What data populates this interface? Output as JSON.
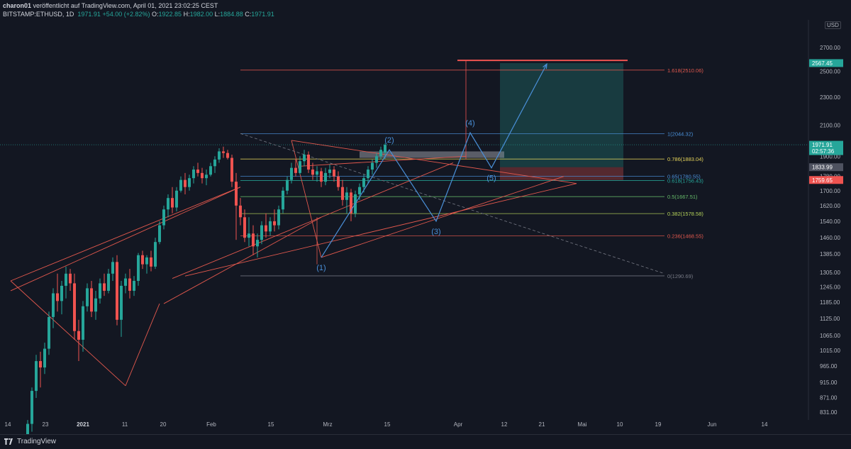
{
  "header": {
    "author": "charon01",
    "published": "veröffentlicht auf TradingView.com, April 01, 2021 23:02:25 CEST",
    "symbol": "BITSTAMP:ETHUSD, 1D",
    "last": "1971.91",
    "change": "+54.00 (+2.82%)",
    "o_label": "O:",
    "o_value": "1922.85",
    "h_label": "H:",
    "h_value": "1982.00",
    "l_label": "L:",
    "l_value": "1884.88",
    "c_label": "C:",
    "c_value": "1971.91"
  },
  "currency_badge": "USD",
  "footer": {
    "brand": "TradingView"
  },
  "colors": {
    "background": "#131722",
    "up": "#26a69a",
    "down": "#ef5350",
    "wave": "#4a90d9",
    "trend": "#e2584d"
  },
  "chart_data": {
    "type": "candlestick",
    "title": "",
    "x_ticks": [
      "14",
      "23",
      "2021",
      "11",
      "20",
      "Feb",
      "15",
      "Mrz",
      "15",
      "Apr",
      "12",
      "21",
      "Mai",
      "10",
      "19",
      "Jun",
      "14"
    ],
    "y_ticks": [
      "2700.00",
      "2500.00",
      "2300.00",
      "2100.00",
      "1900.00",
      "1780.00",
      "1700.00",
      "1620.00",
      "1540.00",
      "1460.00",
      "1385.00",
      "1305.00",
      "1245.00",
      "1185.00",
      "1125.00",
      "1065.00",
      "1015.00",
      "965.00",
      "915.00",
      "871.00",
      "831.00"
    ],
    "price_labels": [
      {
        "text": "2567.45",
        "color": "#26a69a"
      },
      {
        "text": "1971.91",
        "sub": "02:57:36",
        "color": "#26a69a"
      },
      {
        "text": "1833.99",
        "color": "#4e5260"
      },
      {
        "text": "1759.65",
        "color": "#ef5350"
      }
    ],
    "fib_levels": [
      {
        "label": "1.618(2510.06)",
        "value": 2510.06,
        "color": "#e2584d"
      },
      {
        "label": "1(2044.32)",
        "value": 2044.32,
        "color": "#4a90d9"
      },
      {
        "label": "0.786(1883.04)",
        "value": 1883.04,
        "color": "#e5d45a"
      },
      {
        "label": "0.65(1780.55)",
        "value": 1780.55,
        "color": "#4a90d9"
      },
      {
        "label": "0.618(1756.43)",
        "value": 1756.43,
        "color": "#26a69a"
      },
      {
        "label": "0.5(1667.51)",
        "value": 1667.51,
        "color": "#66bb6a"
      },
      {
        "label": "0.382(1578.58)",
        "value": 1578.58,
        "color": "#b5d35a"
      },
      {
        "label": "0.236(1468.55)",
        "value": 1468.55,
        "color": "#e2584d"
      },
      {
        "label": "0(1290.69)",
        "value": 1290.69,
        "color": "#787b86"
      }
    ],
    "wave_labels": [
      "(1)",
      "(2)",
      "(3)",
      "(4)",
      "(5)"
    ],
    "wave_points": [
      {
        "date": "2021-02-26",
        "price": 1370
      },
      {
        "date": "2021-03-14",
        "price": 1940
      },
      {
        "date": "2021-03-25",
        "price": 1540
      },
      {
        "date": "2021-04-02",
        "price": 2050
      },
      {
        "date": "2021-04-07",
        "price": 1830
      },
      {
        "date": "2021-04-20",
        "price": 2560
      }
    ],
    "candles": [
      {
        "o": 752,
        "h": 810,
        "l": 740,
        "c": 800
      },
      {
        "o": 800,
        "h": 900,
        "l": 780,
        "c": 890
      },
      {
        "o": 890,
        "h": 1000,
        "l": 870,
        "c": 980
      },
      {
        "o": 980,
        "h": 1010,
        "l": 900,
        "c": 960
      },
      {
        "o": 960,
        "h": 1040,
        "l": 940,
        "c": 1020
      },
      {
        "o": 1020,
        "h": 1150,
        "l": 1000,
        "c": 1130
      },
      {
        "o": 1130,
        "h": 1240,
        "l": 1090,
        "c": 1220
      },
      {
        "o": 1220,
        "h": 1300,
        "l": 1150,
        "c": 1190
      },
      {
        "o": 1190,
        "h": 1270,
        "l": 1140,
        "c": 1250
      },
      {
        "o": 1250,
        "h": 1330,
        "l": 1200,
        "c": 1300
      },
      {
        "o": 1300,
        "h": 1320,
        "l": 1230,
        "c": 1260
      },
      {
        "o": 1260,
        "h": 1300,
        "l": 1050,
        "c": 1080
      },
      {
        "o": 1080,
        "h": 1120,
        "l": 980,
        "c": 1050
      },
      {
        "o": 1050,
        "h": 1190,
        "l": 1010,
        "c": 1170
      },
      {
        "o": 1170,
        "h": 1260,
        "l": 1150,
        "c": 1240
      },
      {
        "o": 1240,
        "h": 1270,
        "l": 1130,
        "c": 1150
      },
      {
        "o": 1150,
        "h": 1230,
        "l": 1120,
        "c": 1200
      },
      {
        "o": 1200,
        "h": 1280,
        "l": 1180,
        "c": 1260
      },
      {
        "o": 1260,
        "h": 1300,
        "l": 1210,
        "c": 1230
      },
      {
        "o": 1230,
        "h": 1320,
        "l": 1220,
        "c": 1300
      },
      {
        "o": 1300,
        "h": 1370,
        "l": 1270,
        "c": 1350
      },
      {
        "o": 1350,
        "h": 1380,
        "l": 1100,
        "c": 1120
      },
      {
        "o": 1120,
        "h": 1270,
        "l": 1060,
        "c": 1250
      },
      {
        "o": 1250,
        "h": 1300,
        "l": 1220,
        "c": 1280
      },
      {
        "o": 1280,
        "h": 1320,
        "l": 1200,
        "c": 1230
      },
      {
        "o": 1230,
        "h": 1290,
        "l": 1210,
        "c": 1270
      },
      {
        "o": 1270,
        "h": 1390,
        "l": 1250,
        "c": 1380
      },
      {
        "o": 1380,
        "h": 1400,
        "l": 1320,
        "c": 1340
      },
      {
        "o": 1340,
        "h": 1380,
        "l": 1300,
        "c": 1370
      },
      {
        "o": 1370,
        "h": 1400,
        "l": 1310,
        "c": 1330
      },
      {
        "o": 1330,
        "h": 1460,
        "l": 1320,
        "c": 1440
      },
      {
        "o": 1440,
        "h": 1540,
        "l": 1430,
        "c": 1520
      },
      {
        "o": 1520,
        "h": 1620,
        "l": 1500,
        "c": 1600
      },
      {
        "o": 1600,
        "h": 1680,
        "l": 1560,
        "c": 1660
      },
      {
        "o": 1660,
        "h": 1720,
        "l": 1580,
        "c": 1610
      },
      {
        "o": 1610,
        "h": 1720,
        "l": 1590,
        "c": 1700
      },
      {
        "o": 1700,
        "h": 1780,
        "l": 1690,
        "c": 1760
      },
      {
        "o": 1760,
        "h": 1800,
        "l": 1680,
        "c": 1720
      },
      {
        "o": 1720,
        "h": 1790,
        "l": 1700,
        "c": 1770
      },
      {
        "o": 1770,
        "h": 1840,
        "l": 1740,
        "c": 1820
      },
      {
        "o": 1820,
        "h": 1860,
        "l": 1780,
        "c": 1800
      },
      {
        "o": 1800,
        "h": 1830,
        "l": 1740,
        "c": 1770
      },
      {
        "o": 1770,
        "h": 1820,
        "l": 1730,
        "c": 1790
      },
      {
        "o": 1790,
        "h": 1860,
        "l": 1780,
        "c": 1840
      },
      {
        "o": 1840,
        "h": 1900,
        "l": 1800,
        "c": 1880
      },
      {
        "o": 1880,
        "h": 1950,
        "l": 1860,
        "c": 1930
      },
      {
        "o": 1930,
        "h": 1960,
        "l": 1890,
        "c": 1920
      },
      {
        "o": 1920,
        "h": 1940,
        "l": 1880,
        "c": 1890
      },
      {
        "o": 1890,
        "h": 1910,
        "l": 1720,
        "c": 1750
      },
      {
        "o": 1750,
        "h": 1800,
        "l": 1450,
        "c": 1620
      },
      {
        "o": 1620,
        "h": 1660,
        "l": 1520,
        "c": 1560
      },
      {
        "o": 1560,
        "h": 1600,
        "l": 1440,
        "c": 1460
      },
      {
        "o": 1460,
        "h": 1560,
        "l": 1420,
        "c": 1480
      },
      {
        "o": 1480,
        "h": 1520,
        "l": 1380,
        "c": 1420
      },
      {
        "o": 1420,
        "h": 1480,
        "l": 1370,
        "c": 1450
      },
      {
        "o": 1450,
        "h": 1540,
        "l": 1430,
        "c": 1520
      },
      {
        "o": 1520,
        "h": 1580,
        "l": 1460,
        "c": 1490
      },
      {
        "o": 1490,
        "h": 1560,
        "l": 1470,
        "c": 1540
      },
      {
        "o": 1540,
        "h": 1600,
        "l": 1490,
        "c": 1520
      },
      {
        "o": 1520,
        "h": 1620,
        "l": 1500,
        "c": 1600
      },
      {
        "o": 1600,
        "h": 1720,
        "l": 1580,
        "c": 1700
      },
      {
        "o": 1700,
        "h": 1780,
        "l": 1680,
        "c": 1760
      },
      {
        "o": 1760,
        "h": 1860,
        "l": 1740,
        "c": 1830
      },
      {
        "o": 1830,
        "h": 1880,
        "l": 1780,
        "c": 1800
      },
      {
        "o": 1800,
        "h": 1900,
        "l": 1790,
        "c": 1870
      },
      {
        "o": 1870,
        "h": 1940,
        "l": 1840,
        "c": 1910
      },
      {
        "o": 1910,
        "h": 1930,
        "l": 1800,
        "c": 1820
      },
      {
        "o": 1820,
        "h": 1860,
        "l": 1760,
        "c": 1790
      },
      {
        "o": 1790,
        "h": 1840,
        "l": 1750,
        "c": 1810
      },
      {
        "o": 1810,
        "h": 1830,
        "l": 1720,
        "c": 1750
      },
      {
        "o": 1750,
        "h": 1830,
        "l": 1730,
        "c": 1800
      },
      {
        "o": 1800,
        "h": 1850,
        "l": 1770,
        "c": 1820
      },
      {
        "o": 1820,
        "h": 1840,
        "l": 1750,
        "c": 1780
      },
      {
        "o": 1780,
        "h": 1810,
        "l": 1700,
        "c": 1720
      },
      {
        "o": 1720,
        "h": 1760,
        "l": 1620,
        "c": 1650
      },
      {
        "o": 1650,
        "h": 1720,
        "l": 1580,
        "c": 1690
      },
      {
        "o": 1690,
        "h": 1710,
        "l": 1540,
        "c": 1580
      },
      {
        "o": 1580,
        "h": 1700,
        "l": 1560,
        "c": 1680
      },
      {
        "o": 1680,
        "h": 1740,
        "l": 1650,
        "c": 1720
      },
      {
        "o": 1720,
        "h": 1790,
        "l": 1690,
        "c": 1770
      },
      {
        "o": 1770,
        "h": 1840,
        "l": 1740,
        "c": 1820
      },
      {
        "o": 1820,
        "h": 1880,
        "l": 1790,
        "c": 1860
      },
      {
        "o": 1860,
        "h": 1920,
        "l": 1830,
        "c": 1900
      },
      {
        "o": 1900,
        "h": 1960,
        "l": 1880,
        "c": 1940
      },
      {
        "o": 1922.85,
        "h": 1982,
        "l": 1884.88,
        "c": 1971.91
      }
    ]
  }
}
